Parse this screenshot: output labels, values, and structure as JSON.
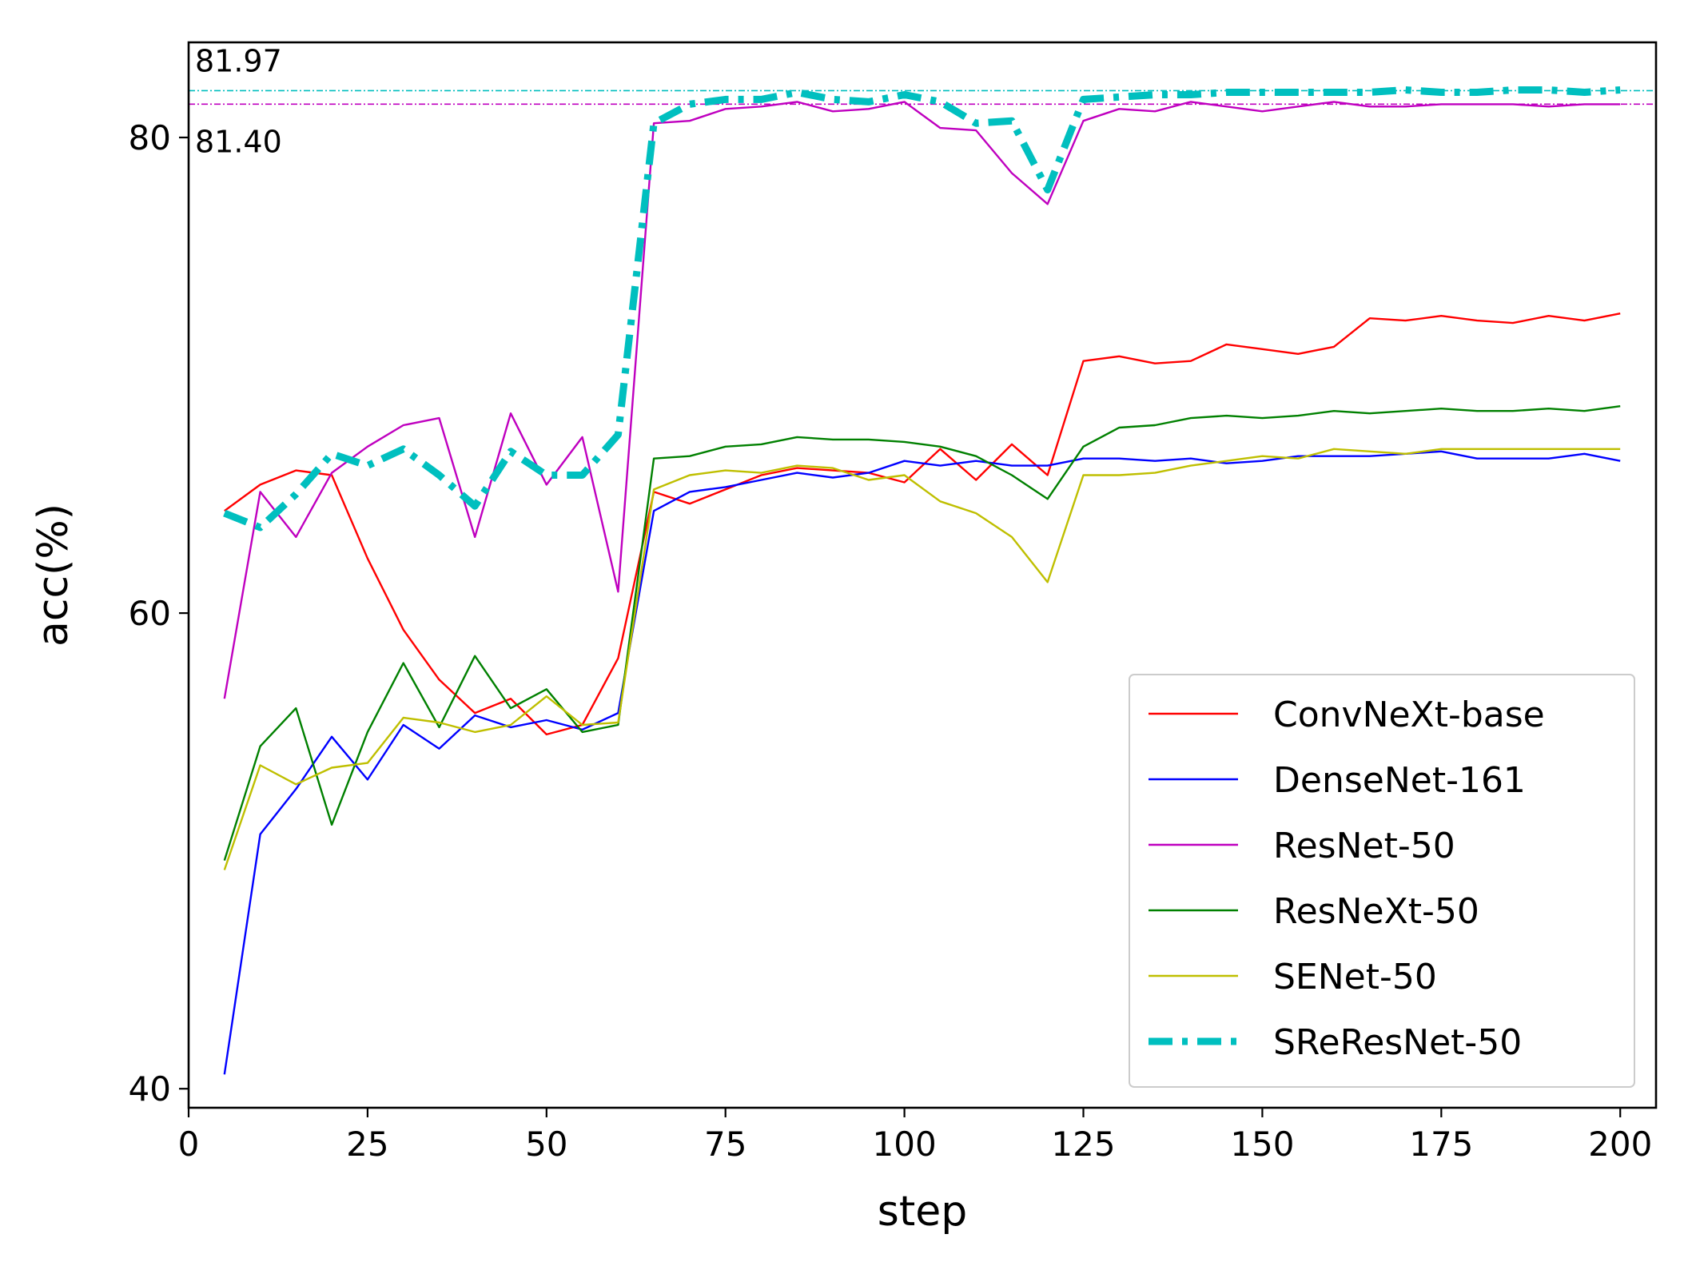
{
  "chart_data": {
    "type": "line",
    "title": "",
    "xlabel": "step",
    "ylabel": "acc(%)",
    "xlim": [
      0,
      205
    ],
    "ylim": [
      39.2,
      84.0
    ],
    "xticks": [
      0,
      25,
      50,
      75,
      100,
      125,
      150,
      175,
      200
    ],
    "yticks": [
      40,
      60,
      80
    ],
    "grid": false,
    "legend_position": "lower-right",
    "colors": {
      "ConvNeXt-base": "#ff0000",
      "DenseNet-161": "#0000ff",
      "ResNet-50": "#bf00bf",
      "ResNeXt-50": "#008000",
      "SENet-50": "#bfbf00",
      "SReResNet-50": "#00bfbf"
    },
    "reference_lines": [
      {
        "y": 81.97,
        "label": "81.97",
        "color": "#00bfbf"
      },
      {
        "y": 81.4,
        "label": "81.40",
        "color": "#bf00bf"
      }
    ],
    "x": [
      5,
      10,
      15,
      20,
      25,
      30,
      35,
      40,
      45,
      50,
      55,
      60,
      65,
      70,
      75,
      80,
      85,
      90,
      95,
      100,
      105,
      110,
      115,
      120,
      125,
      130,
      135,
      140,
      145,
      150,
      155,
      160,
      165,
      170,
      175,
      180,
      185,
      190,
      195,
      200
    ],
    "series": [
      {
        "name": "ConvNeXt-base",
        "style": "solid",
        "values": [
          64.3,
          65.4,
          66.0,
          65.8,
          62.3,
          59.3,
          57.2,
          55.8,
          56.4,
          54.9,
          55.3,
          58.1,
          65.1,
          64.6,
          65.2,
          65.8,
          66.1,
          66.0,
          65.9,
          65.5,
          66.9,
          65.6,
          67.1,
          65.8,
          70.6,
          70.8,
          70.5,
          70.6,
          71.3,
          71.1,
          70.9,
          71.2,
          72.4,
          72.3,
          72.5,
          72.3,
          72.2,
          72.5,
          72.3,
          72.6
        ]
      },
      {
        "name": "DenseNet-161",
        "style": "solid",
        "values": [
          40.6,
          50.7,
          52.6,
          54.8,
          53.0,
          55.3,
          54.3,
          55.7,
          55.2,
          55.5,
          55.1,
          55.8,
          64.3,
          65.1,
          65.3,
          65.6,
          65.9,
          65.7,
          65.9,
          66.4,
          66.2,
          66.4,
          66.2,
          66.2,
          66.5,
          66.5,
          66.4,
          66.5,
          66.3,
          66.4,
          66.6,
          66.6,
          66.6,
          66.7,
          66.8,
          66.5,
          66.5,
          66.5,
          66.7,
          66.4
        ]
      },
      {
        "name": "ResNet-50",
        "style": "solid",
        "values": [
          56.4,
          65.1,
          63.2,
          65.9,
          67.0,
          67.9,
          68.2,
          63.2,
          68.4,
          65.4,
          67.4,
          60.9,
          80.6,
          80.7,
          81.2,
          81.3,
          81.5,
          81.1,
          81.2,
          81.5,
          80.4,
          80.3,
          78.5,
          77.2,
          80.7,
          81.2,
          81.1,
          81.5,
          81.3,
          81.1,
          81.3,
          81.5,
          81.3,
          81.3,
          81.4,
          81.4,
          81.4,
          81.3,
          81.4,
          81.4
        ]
      },
      {
        "name": "ResNeXt-50",
        "style": "solid",
        "values": [
          49.6,
          54.4,
          56.0,
          51.1,
          55.0,
          57.9,
          55.2,
          58.2,
          56.0,
          56.8,
          55.0,
          55.3,
          66.5,
          66.6,
          67.0,
          67.1,
          67.4,
          67.3,
          67.3,
          67.2,
          67.0,
          66.6,
          65.8,
          64.8,
          67.0,
          67.8,
          67.9,
          68.2,
          68.3,
          68.2,
          68.3,
          68.5,
          68.4,
          68.5,
          68.6,
          68.5,
          68.5,
          68.6,
          68.5,
          68.7
        ]
      },
      {
        "name": "SENet-50",
        "style": "solid",
        "values": [
          49.2,
          53.6,
          52.8,
          53.5,
          53.7,
          55.6,
          55.4,
          55.0,
          55.3,
          56.5,
          55.3,
          55.4,
          65.2,
          65.8,
          66.0,
          65.9,
          66.2,
          66.1,
          65.6,
          65.8,
          64.7,
          64.2,
          63.2,
          61.3,
          65.8,
          65.8,
          65.9,
          66.2,
          66.4,
          66.6,
          66.5,
          66.9,
          66.8,
          66.7,
          66.9,
          66.9,
          66.9,
          66.9,
          66.9,
          66.9
        ]
      },
      {
        "name": "SReResNet-50",
        "style": "dashdot",
        "values": [
          64.2,
          63.6,
          65.0,
          66.7,
          66.2,
          66.9,
          65.8,
          64.5,
          66.8,
          65.8,
          65.8,
          67.5,
          80.6,
          81.4,
          81.6,
          81.6,
          81.9,
          81.6,
          81.5,
          81.8,
          81.5,
          80.6,
          80.7,
          77.8,
          81.6,
          81.7,
          81.8,
          81.8,
          81.9,
          81.9,
          81.9,
          81.9,
          81.9,
          82.0,
          81.9,
          81.9,
          82.0,
          82.0,
          81.9,
          82.0
        ]
      }
    ]
  }
}
